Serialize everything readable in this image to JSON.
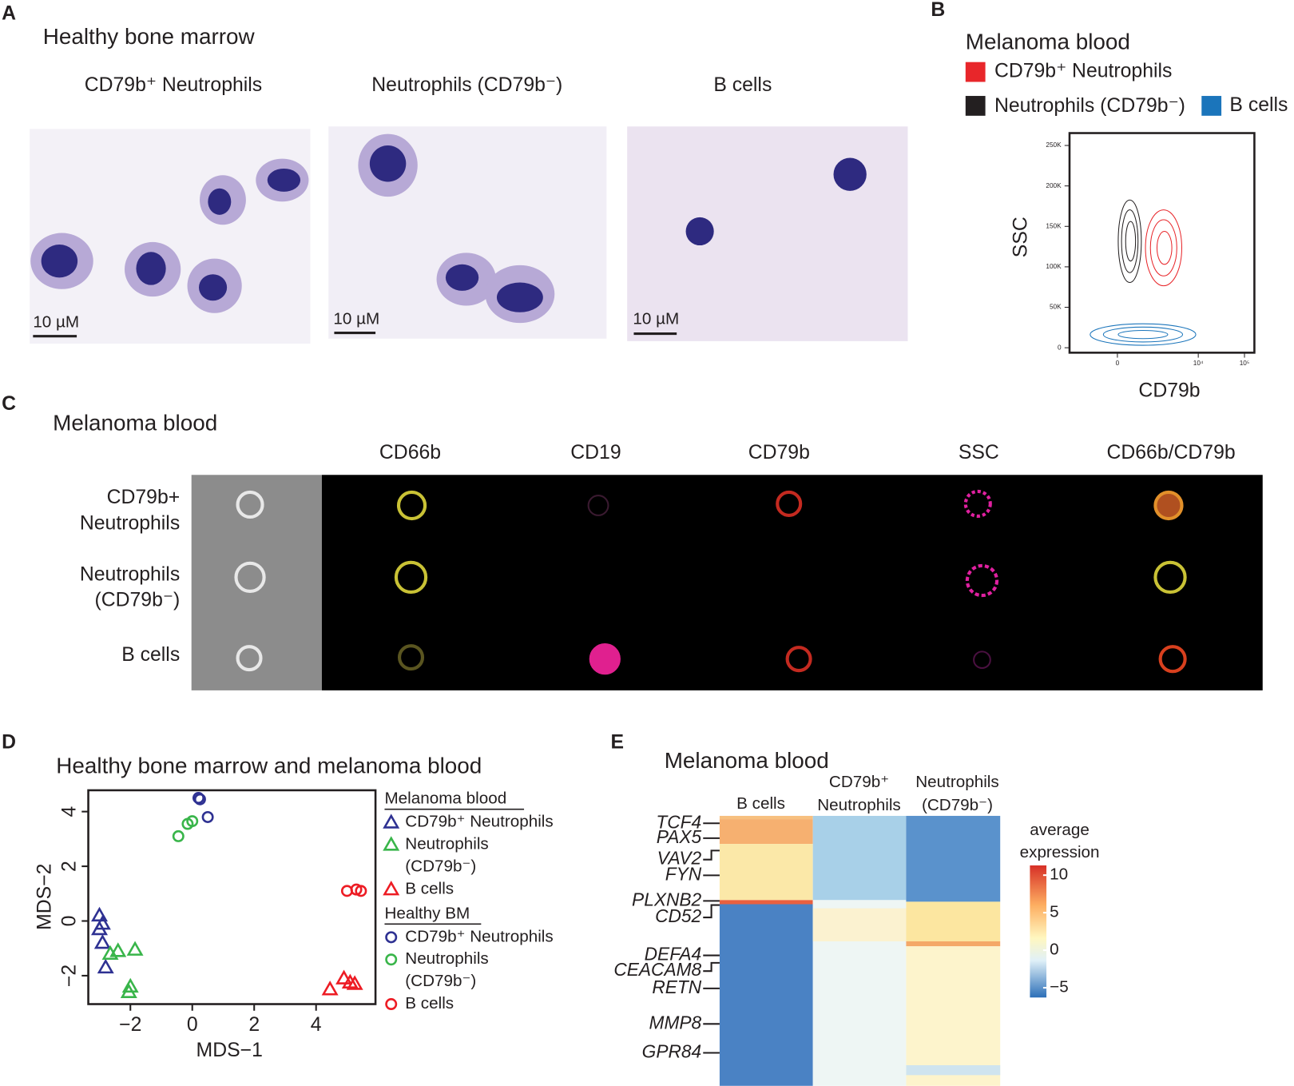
{
  "panel_a": {
    "label": "A",
    "title": "Healthy bone marrow",
    "images": [
      {
        "title": "CD79b⁺ Neutrophils",
        "scale": "10 µM"
      },
      {
        "title": "Neutrophils (CD79b⁻)",
        "scale": "10 µM"
      },
      {
        "title": "B cells",
        "scale": "10 µM"
      }
    ]
  },
  "panel_b": {
    "label": "B",
    "title": "Melanoma blood",
    "legend": [
      {
        "name": "CD79b⁺ Neutrophils",
        "color": "#e8262a"
      },
      {
        "name": "Neutrophils (CD79b⁻)",
        "color": "#231f20"
      },
      {
        "name": "B cells",
        "color": "#1b75bb"
      }
    ],
    "xlabel": "CD79b",
    "ylabel": "SSC",
    "yticks": [
      "250K",
      "200K",
      "150K",
      "100K",
      "50K",
      "0"
    ],
    "xticks": [
      "0",
      "10⁴",
      "10⁵"
    ]
  },
  "panel_c": {
    "label": "C",
    "title": "Melanoma blood",
    "columns": [
      "CD66b",
      "CD19",
      "CD79b",
      "SSC",
      "CD66b/CD79b"
    ],
    "rows": [
      [
        "CD79b+",
        "Neutrophils"
      ],
      [
        "Neutrophils",
        "(CD79b⁻)"
      ],
      [
        "B cells"
      ]
    ]
  },
  "panel_d": {
    "label": "D",
    "title": "Healthy bone marrow and melanoma blood",
    "xlabel": "MDS−1",
    "ylabel": "MDS−2",
    "xlim": [
      -3.36,
      5.92
    ],
    "ylim": [
      -3.04,
      4.78
    ],
    "xticks": [
      {
        "value": -2,
        "label": "−2"
      },
      0,
      2,
      4
    ],
    "yticks": [
      {
        "value": -2,
        "label": "−2"
      },
      0,
      2,
      4
    ],
    "groups": [
      "Melanoma blood",
      "Healthy BM"
    ],
    "series": [
      {
        "name": [
          "CD79b⁺ Neutrophils"
        ],
        "group": 0,
        "marker": "triangle",
        "color": "#2e3192",
        "x": [
          -3.0,
          -2.9,
          -3.0,
          -2.9,
          -2.8
        ],
        "y": [
          0.2,
          -0.1,
          -0.3,
          -0.8,
          -1.7
        ]
      },
      {
        "name": [
          "Neutrophils",
          "(CD79b⁻)"
        ],
        "group": 0,
        "marker": "triangle",
        "color": "#39b54a",
        "x": [
          -2.65,
          -2.4,
          -1.85,
          -2.0,
          -2.05
        ],
        "y": [
          -1.2,
          -1.1,
          -1.05,
          -2.4,
          -2.6
        ]
      },
      {
        "name": [
          "B cells"
        ],
        "group": 0,
        "marker": "triangle",
        "color": "#ed1c24",
        "x": [
          4.45,
          4.9,
          5.1,
          5.25
        ],
        "y": [
          -2.5,
          -2.1,
          -2.25,
          -2.3
        ]
      },
      {
        "name": [
          "CD79b⁺ Neutrophils"
        ],
        "group": 1,
        "marker": "circle",
        "color": "#2e3192",
        "x": [
          0.2,
          0.25,
          0.5
        ],
        "y": [
          4.5,
          4.45,
          3.8
        ]
      },
      {
        "name": [
          "Neutrophils",
          "(CD79b⁻)"
        ],
        "group": 1,
        "marker": "circle",
        "color": "#39b54a",
        "x": [
          -0.45,
          -0.15,
          0
        ],
        "y": [
          3.1,
          3.55,
          3.65
        ]
      },
      {
        "name": [
          "B cells"
        ],
        "group": 1,
        "marker": "circle",
        "color": "#ed1c24",
        "x": [
          5.0,
          5.3,
          5.45
        ],
        "y": [
          1.1,
          1.15,
          1.1
        ]
      }
    ]
  },
  "panel_e": {
    "label": "E",
    "title": "Melanoma blood",
    "columns": [
      [
        "B cells"
      ],
      [
        "CD79b⁺",
        "Neutrophils"
      ],
      [
        "Neutrophils",
        "(CD79b⁻)"
      ]
    ],
    "genes": [
      "TCF4",
      "PAX5",
      "VAV2",
      "FYN",
      "PLXNB2",
      "CD52",
      "DEFA4",
      "CEACAM8",
      "RETN",
      "MMP8",
      "GPR84"
    ],
    "colorbar_title": [
      "average",
      "expression"
    ],
    "colorbar_lim": [
      -6.3,
      11.3
    ],
    "colorbar_ticks": [
      10,
      5,
      0,
      {
        "value": -5,
        "label": "−5"
      }
    ]
  }
}
